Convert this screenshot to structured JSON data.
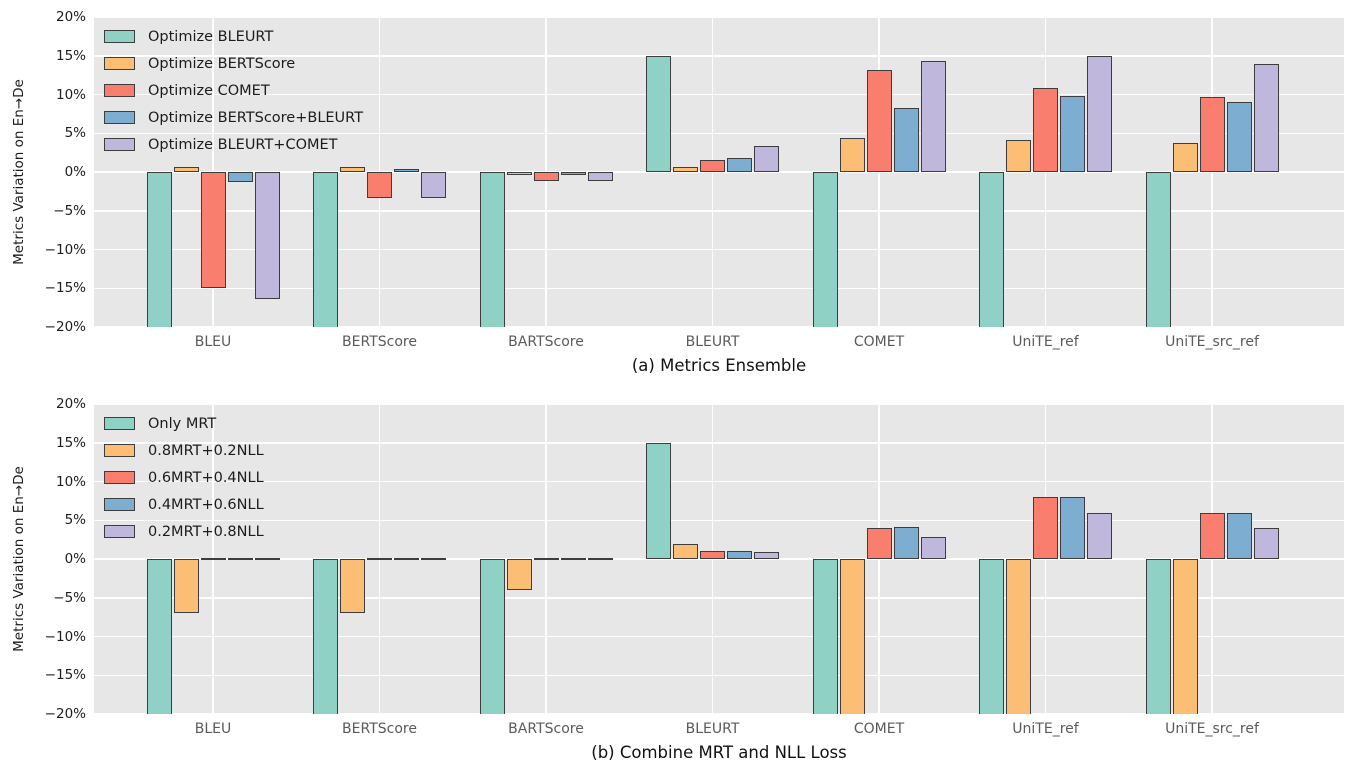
{
  "style": {
    "figure_background": "#ffffff",
    "plot_background": "#e7e7e7",
    "grid_color": "#ffffff",
    "bar_edge_color": "#3d3d3d",
    "axis_text_color": "#1c1c1c",
    "category_text_color": "#5a5a5a",
    "series_colors": {
      "teal": "#8fd1c5",
      "orange": "#fcbd74",
      "red": "#f97e6d",
      "blue": "#7eadd2",
      "purple": "#bfb8dc"
    }
  },
  "chart_data": [
    {
      "type": "bar",
      "title": "(a) Metrics Ensemble",
      "ylabel": "Metrics Variation on En→De",
      "ylim": [
        -20,
        20
      ],
      "grid": true,
      "legend_position": "upper-left",
      "yticks": [
        {
          "value": 20,
          "label": "20%"
        },
        {
          "value": 15,
          "label": "15%"
        },
        {
          "value": 10,
          "label": "10%"
        },
        {
          "value": 5,
          "label": "5%"
        },
        {
          "value": 0,
          "label": "0%"
        },
        {
          "value": -5,
          "label": "−5%"
        },
        {
          "value": -10,
          "label": "−10%"
        },
        {
          "value": -15,
          "label": "−15%"
        },
        {
          "value": -20,
          "label": "−20%"
        }
      ],
      "categories": [
        "BLEU",
        "BERTScore",
        "BARTScore",
        "BLEURT",
        "COMET",
        "UniTE_ref",
        "UniTE_src_ref"
      ],
      "series": [
        {
          "name": "Optimize BLEURT",
          "color": "#8fd1c5",
          "values": [
            -20,
            -20,
            -20,
            15,
            -20,
            -20,
            -20
          ]
        },
        {
          "name": "Optimize BERTScore",
          "color": "#fcbd74",
          "values": [
            0.7,
            0.7,
            -0.4,
            0.6,
            4.4,
            4.1,
            3.8
          ]
        },
        {
          "name": "Optimize COMET",
          "color": "#f97e6d",
          "values": [
            -15,
            -3.4,
            -1.2,
            1.6,
            13.2,
            10.8,
            9.7
          ]
        },
        {
          "name": "Optimize BERTScore+BLEURT",
          "color": "#7eadd2",
          "values": [
            -1.3,
            0.4,
            -0.3,
            1.8,
            8.2,
            9.8,
            9.0
          ]
        },
        {
          "name": "Optimize BLEURT+COMET",
          "color": "#bfb8dc",
          "values": [
            -16.4,
            -3.3,
            -1.2,
            3.3,
            14.3,
            15.0,
            13.9
          ]
        }
      ],
      "note_bars_clipped_at": -20
    },
    {
      "type": "bar",
      "title": "(b) Combine MRT and NLL Loss",
      "ylabel": "Metrics Variation on En→De",
      "ylim": [
        -20,
        20
      ],
      "grid": true,
      "legend_position": "upper-left",
      "yticks": [
        {
          "value": 20,
          "label": "20%"
        },
        {
          "value": 15,
          "label": "15%"
        },
        {
          "value": 10,
          "label": "10%"
        },
        {
          "value": 5,
          "label": "5%"
        },
        {
          "value": 0,
          "label": "0%"
        },
        {
          "value": -5,
          "label": "−5%"
        },
        {
          "value": -10,
          "label": "−10%"
        },
        {
          "value": -15,
          "label": "−15%"
        },
        {
          "value": -20,
          "label": "−20%"
        }
      ],
      "categories": [
        "BLEU",
        "BERTScore",
        "BARTScore",
        "BLEURT",
        "COMET",
        "UniTE_ref",
        "UniTE_src_ref"
      ],
      "series": [
        {
          "name": "Only MRT",
          "color": "#8fd1c5",
          "values": [
            -20,
            -20,
            -20,
            15,
            -20,
            -20,
            -20
          ]
        },
        {
          "name": "0.8MRT+0.2NLL",
          "color": "#fcbd74",
          "values": [
            -7,
            -7,
            -4,
            1.9,
            -20,
            -20,
            -20
          ]
        },
        {
          "name": "0.6MRT+0.4NLL",
          "color": "#f97e6d",
          "values": [
            0,
            0,
            0,
            1,
            4.0,
            8,
            6
          ]
        },
        {
          "name": "0.4MRT+0.6NLL",
          "color": "#7eadd2",
          "values": [
            0,
            0,
            0,
            1,
            4.1,
            8,
            6
          ]
        },
        {
          "name": "0.2MRT+0.8NLL",
          "color": "#bfb8dc",
          "values": [
            0,
            0,
            0,
            0.9,
            2.9,
            6,
            4
          ]
        }
      ],
      "note_bars_clipped_at": -20
    }
  ]
}
